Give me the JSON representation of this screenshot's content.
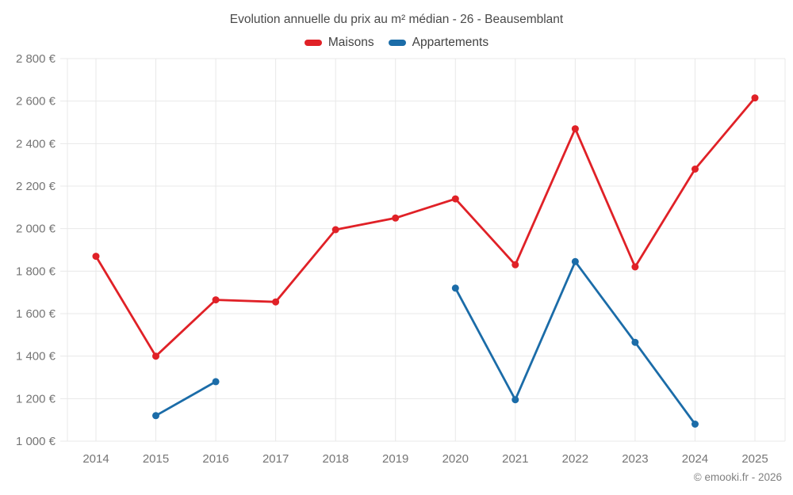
{
  "title": "Evolution annuelle du prix au m² médian - 26 - Beausemblant",
  "legend": {
    "items": [
      {
        "label": "Maisons",
        "color": "#e02127"
      },
      {
        "label": "Appartements",
        "color": "#1b6ca8"
      }
    ]
  },
  "watermark": "© emooki.fr - 2026",
  "colors": {
    "maisons": "#e02127",
    "appartements": "#1b6ca8",
    "gridline": "#e8e8e8",
    "axis_label": "#757575",
    "title_text": "#4a4a4a"
  },
  "chart_data": {
    "type": "line",
    "title": "Evolution annuelle du prix au m² médian - 26 - Beausemblant",
    "x": [
      2014,
      2015,
      2016,
      2017,
      2018,
      2019,
      2020,
      2021,
      2022,
      2023,
      2024,
      2025
    ],
    "series": [
      {
        "name": "Maisons",
        "color": "#e02127",
        "values": [
          1870,
          1400,
          1665,
          1655,
          1995,
          2050,
          2140,
          1830,
          2470,
          1820,
          2280,
          2615
        ]
      },
      {
        "name": "Appartements",
        "color": "#1b6ca8",
        "values": [
          null,
          1120,
          1280,
          null,
          null,
          null,
          1720,
          1195,
          1845,
          1465,
          1080,
          null
        ]
      }
    ],
    "xlabel": "",
    "ylabel": "",
    "ylim": [
      1000,
      2800
    ],
    "ytick_step": 200,
    "ytick_suffix": " €",
    "grid": true,
    "legend_position": "top"
  }
}
